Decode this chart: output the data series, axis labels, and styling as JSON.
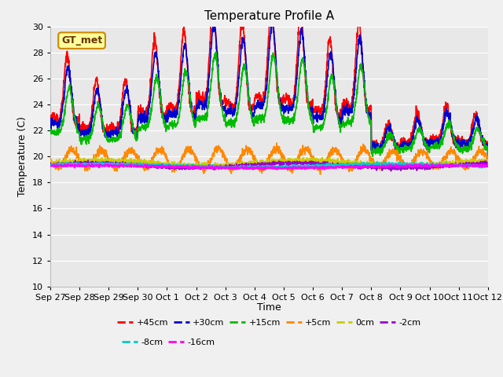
{
  "title": "Temperature Profile A",
  "xlabel": "Time",
  "ylabel": "Temperature (C)",
  "ylim": [
    10,
    30
  ],
  "yticks": [
    10,
    12,
    14,
    16,
    18,
    20,
    22,
    24,
    26,
    28,
    30
  ],
  "background_color": "#e8e8e8",
  "fig_background": "#f0f0f0",
  "series": [
    {
      "label": "+45cm",
      "color": "#ff0000",
      "lw": 1.2
    },
    {
      "label": "+30cm",
      "color": "#0000cc",
      "lw": 1.2
    },
    {
      "label": "+15cm",
      "color": "#00bb00",
      "lw": 1.2
    },
    {
      "label": "+5cm",
      "color": "#ff8800",
      "lw": 1.2
    },
    {
      "label": "0cm",
      "color": "#cccc00",
      "lw": 1.2
    },
    {
      "label": "-2cm",
      "color": "#9900cc",
      "lw": 1.2
    },
    {
      "label": "-8cm",
      "color": "#00cccc",
      "lw": 1.2
    },
    {
      "label": "-16cm",
      "color": "#ff00ff",
      "lw": 1.2
    }
  ],
  "x_tick_labels": [
    "Sep 27",
    "Sep 28",
    "Sep 29",
    "Sep 30",
    "Oct 1",
    "Oct 2",
    "Oct 3",
    "Oct 4",
    "Oct 5",
    "Oct 6",
    "Oct 7",
    "Oct 8",
    "Oct 9",
    "Oct 10",
    "Oct 11",
    "Oct 12"
  ],
  "gt_met_label": "GT_met",
  "gt_met_box_color": "#ffff99",
  "gt_met_border_color": "#cc8800",
  "gt_met_text_color": "#663300",
  "n_days": 15,
  "pts_per_day": 144
}
